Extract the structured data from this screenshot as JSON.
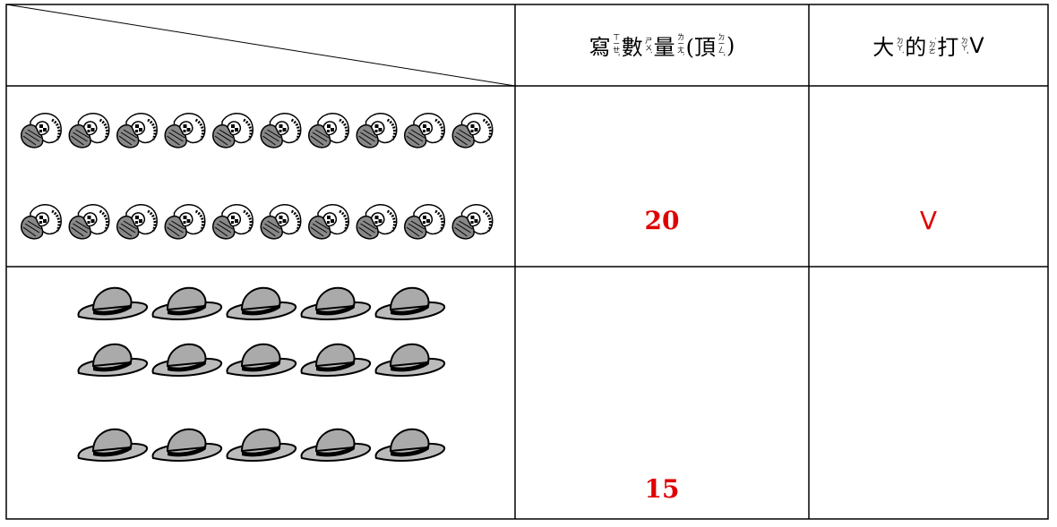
{
  "table": {
    "header": {
      "count_column": [
        {
          "text": "寫",
          "zhuyin": "ㄒㄧㄝˇ"
        },
        {
          "text": "數",
          "zhuyin": "ㄕㄨˋ"
        },
        {
          "text": "量",
          "zhuyin": "ㄌㄧㄤˋ"
        },
        {
          "text": "(頂",
          "zhuyin": "ㄉㄧㄥˇ"
        },
        {
          "text": ")"
        }
      ],
      "mark_column": [
        {
          "text": "大",
          "zhuyin": "ㄉㄚˋ"
        },
        {
          "text": "的",
          "zhuyin": "˙ㄉㄜ"
        },
        {
          "text": "打",
          "zhuyin": "ㄉㄚˇ"
        },
        {
          "text": "V"
        }
      ]
    },
    "rows": [
      {
        "count": "20",
        "mark": "V"
      },
      {
        "count": "15"
      }
    ]
  }
}
